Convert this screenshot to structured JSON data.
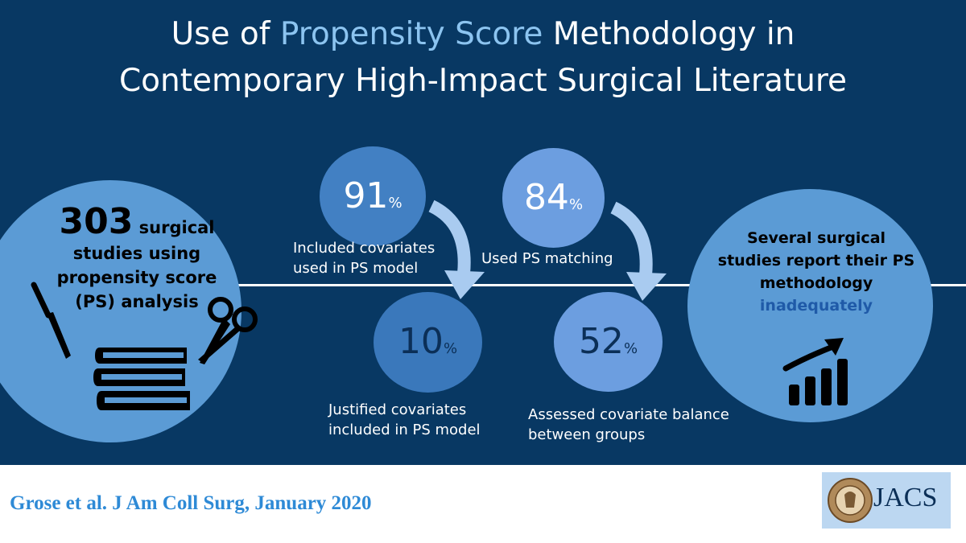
{
  "title": {
    "line1_pre": "Use of ",
    "line1_highlight": "Propensity Score",
    "line1_post": " Methodology in",
    "line2": "Contemporary High-Impact Surgical Literature"
  },
  "left_circle": {
    "count": "303",
    "line1": "surgical",
    "line2": "studies using",
    "line3": "propensity score",
    "line4": "(PS) analysis"
  },
  "stats": [
    {
      "value": "91",
      "unit": "%",
      "label_line1": "Included covariates",
      "label_line2": "used in PS model"
    },
    {
      "value": "10",
      "unit": "%",
      "label_line1": "Justified covariates",
      "label_line2": "included in PS model"
    },
    {
      "value": "84",
      "unit": "%",
      "label_line1": "Used PS matching",
      "label_line2": ""
    },
    {
      "value": "52",
      "unit": "%",
      "label_line1": "Assessed covariate balance",
      "label_line2": "between groups"
    }
  ],
  "right_circle": {
    "line1": "Several surgical",
    "line2": "studies report their PS",
    "line3": "methodology",
    "line4": "inadequately"
  },
  "footer": {
    "citation": "Grose et al. J Am Coll Surg, January 2020",
    "logo_text": "JACS"
  },
  "icons": [
    "scalpel-icon",
    "books-icon",
    "scissors-icon",
    "growth-chart-icon",
    "curved-arrow-icon",
    "journal-seal-icon"
  ],
  "colors": {
    "background": "#083863",
    "highlight": "#8cc4f0",
    "circle_light": "#5b9bd5",
    "circle_91": "#4280c3",
    "circle_84": "#6c9ee0",
    "circle_10": "#3a78bb",
    "circle_52": "#6c9ee0",
    "arrow": "#a9cbf0",
    "citation": "#2e8ad6"
  }
}
